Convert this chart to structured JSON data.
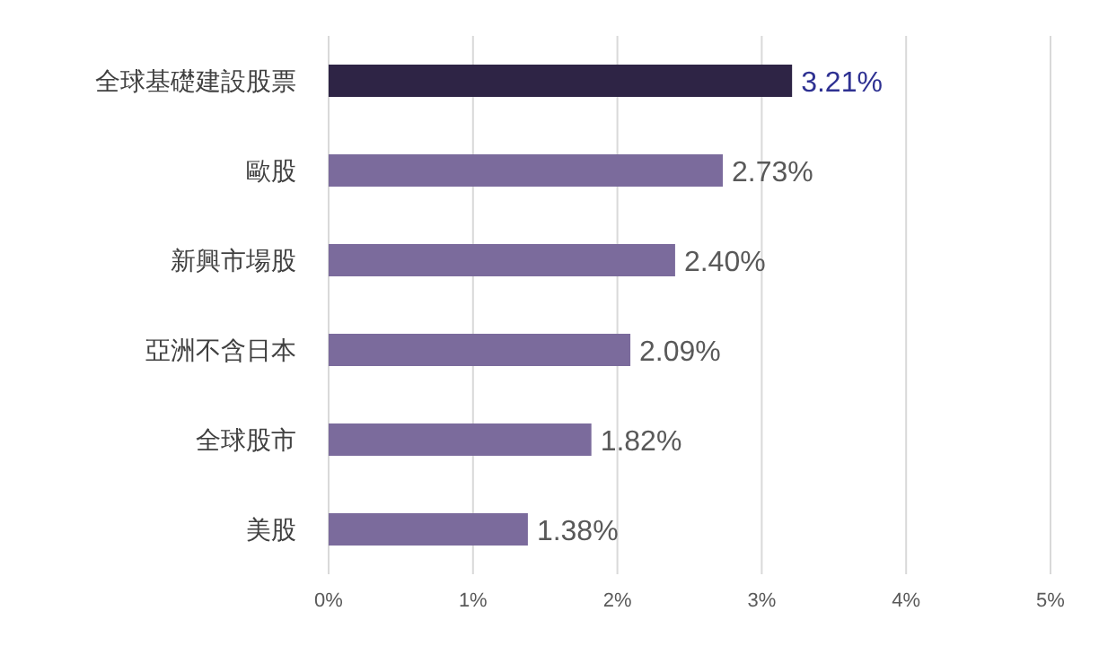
{
  "chart_data": {
    "type": "bar",
    "orientation": "horizontal",
    "categories": [
      "全球基礎建設股票",
      "歐股",
      "新興市場股",
      "亞洲不含日本",
      "全球股市",
      "美股"
    ],
    "values": [
      3.21,
      2.73,
      2.4,
      2.09,
      1.82,
      1.38
    ],
    "colors": [
      "#2e2445",
      "#7b6b9c",
      "#7b6b9c",
      "#7b6b9c",
      "#7b6b9c",
      "#7b6b9c"
    ],
    "value_labels": [
      "3.21%",
      "2.73%",
      "2.40%",
      "2.09%",
      "1.82%",
      "1.38%"
    ],
    "xlim": [
      0,
      5
    ],
    "xticks": [
      {
        "value": 0,
        "label": "0%"
      },
      {
        "value": 1,
        "label": "1%"
      },
      {
        "value": 2,
        "label": "2%"
      },
      {
        "value": 3,
        "label": "3%"
      },
      {
        "value": 4,
        "label": "4%"
      },
      {
        "value": 5,
        "label": "5%"
      }
    ],
    "grid": "x"
  }
}
